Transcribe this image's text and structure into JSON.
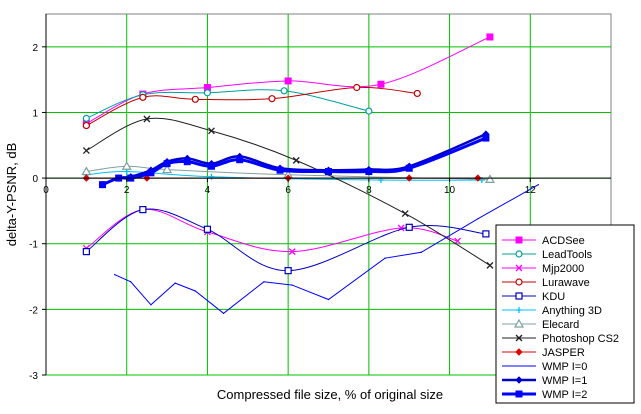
{
  "chart_data": {
    "type": "line",
    "title": "",
    "xlabel": "Compressed file size, % of original size",
    "ylabel": "delta-Y-PSNR, dB",
    "xlim": [
      0,
      14
    ],
    "ylim": [
      -3,
      2.5
    ],
    "xticks": [
      0,
      2,
      4,
      6,
      8,
      10,
      12
    ],
    "yticks": [
      -3,
      -2,
      -1,
      0,
      1,
      2
    ],
    "grid": true,
    "grid_color": "#00c000",
    "plot_background": "#ffffff",
    "legend_position": "right-bottom",
    "series": [
      {
        "name": "ACDSee",
        "color": "#ff00ff",
        "marker": "square-filled",
        "x": [
          1.0,
          2.4,
          4.0,
          6.0,
          8.3,
          11.0
        ],
        "y": [
          0.83,
          1.28,
          1.38,
          1.48,
          1.43,
          2.15
        ]
      },
      {
        "name": "LeadTools",
        "color": "#00a0a0",
        "marker": "circle-open",
        "x": [
          1.0,
          2.4,
          4.0,
          5.9,
          8.0
        ],
        "y": [
          0.91,
          1.27,
          1.3,
          1.33,
          1.02
        ]
      },
      {
        "name": "Mjp2000",
        "color": "#ff00ff",
        "marker": "x",
        "x": [
          1.0,
          2.4,
          4.0,
          6.1,
          8.8,
          10.2
        ],
        "y": [
          -1.07,
          -0.48,
          -0.82,
          -1.12,
          -0.76,
          -0.96
        ]
      },
      {
        "name": "Lurawave",
        "color": "#c00000",
        "marker": "circle-open",
        "x": [
          1.0,
          2.4,
          3.7,
          5.6,
          7.7,
          9.2
        ],
        "y": [
          0.8,
          1.23,
          1.2,
          1.21,
          1.38,
          1.29
        ]
      },
      {
        "name": "KDU",
        "color": "#0000c0",
        "marker": "square-open",
        "x": [
          1.0,
          2.4,
          4.0,
          6.0,
          9.0,
          10.9
        ],
        "y": [
          -1.12,
          -0.48,
          -0.78,
          -1.41,
          -0.75,
          -0.85
        ]
      },
      {
        "name": "Anything 3D",
        "color": "#00c0ff",
        "marker": "plus",
        "x": [
          1.0,
          2.0,
          4.1,
          8.3,
          10.8
        ],
        "y": [
          0.05,
          0.1,
          0.02,
          -0.03,
          -0.03
        ]
      },
      {
        "name": "Elecard",
        "color": "#80a0a0",
        "marker": "triangle-open",
        "x": [
          1.0,
          2.0,
          3.0,
          6.0,
          11.0
        ],
        "y": [
          0.1,
          0.18,
          0.13,
          0.05,
          -0.02
        ]
      },
      {
        "name": "Photoshop CS2",
        "color": "#202020",
        "marker": "x",
        "x": [
          1.0,
          2.5,
          4.1,
          6.2,
          8.9,
          11.0
        ],
        "y": [
          0.42,
          0.9,
          0.72,
          0.27,
          -0.54,
          -1.33
        ]
      },
      {
        "name": "JASPER",
        "color": "#e00000",
        "marker": "diamond-filled",
        "x": [
          1.0,
          2.5,
          6.0,
          9.0,
          10.7
        ],
        "y": [
          0.0,
          0.0,
          0.0,
          0.0,
          0.0
        ]
      },
      {
        "name": "WMP I=0",
        "color": "#0000ff",
        "marker": "dash",
        "x": [
          1.7,
          2.1,
          2.6,
          3.2,
          3.7,
          4.4,
          5.4,
          6.1,
          7.0,
          8.4,
          9.3,
          10.7,
          12.2
        ],
        "y": [
          -1.47,
          -1.58,
          -1.93,
          -1.6,
          -1.72,
          -2.06,
          -1.58,
          -1.63,
          -1.85,
          -1.22,
          -1.13,
          -0.62,
          -0.1
        ]
      },
      {
        "name": "WMP I=1",
        "color": "#0000cc",
        "marker": "diamond-filled",
        "width": 2.5,
        "x": [
          1.4,
          1.8,
          2.1,
          2.6,
          3.0,
          3.5,
          4.1,
          4.8,
          5.8,
          7.0,
          8.0,
          9.0,
          10.9
        ],
        "y": [
          -0.1,
          0.0,
          0.02,
          0.12,
          0.25,
          0.3,
          0.22,
          0.33,
          0.15,
          0.12,
          0.13,
          0.18,
          0.67
        ]
      },
      {
        "name": "WMP I=2",
        "color": "#0000ff",
        "marker": "square-filled",
        "width": 3,
        "x": [
          1.4,
          1.8,
          2.1,
          2.6,
          3.0,
          3.5,
          4.1,
          4.8,
          5.8,
          7.0,
          8.0,
          9.0,
          10.9
        ],
        "y": [
          -0.1,
          0.0,
          0.0,
          0.08,
          0.22,
          0.25,
          0.18,
          0.28,
          0.12,
          0.1,
          0.1,
          0.15,
          0.61
        ]
      }
    ]
  }
}
